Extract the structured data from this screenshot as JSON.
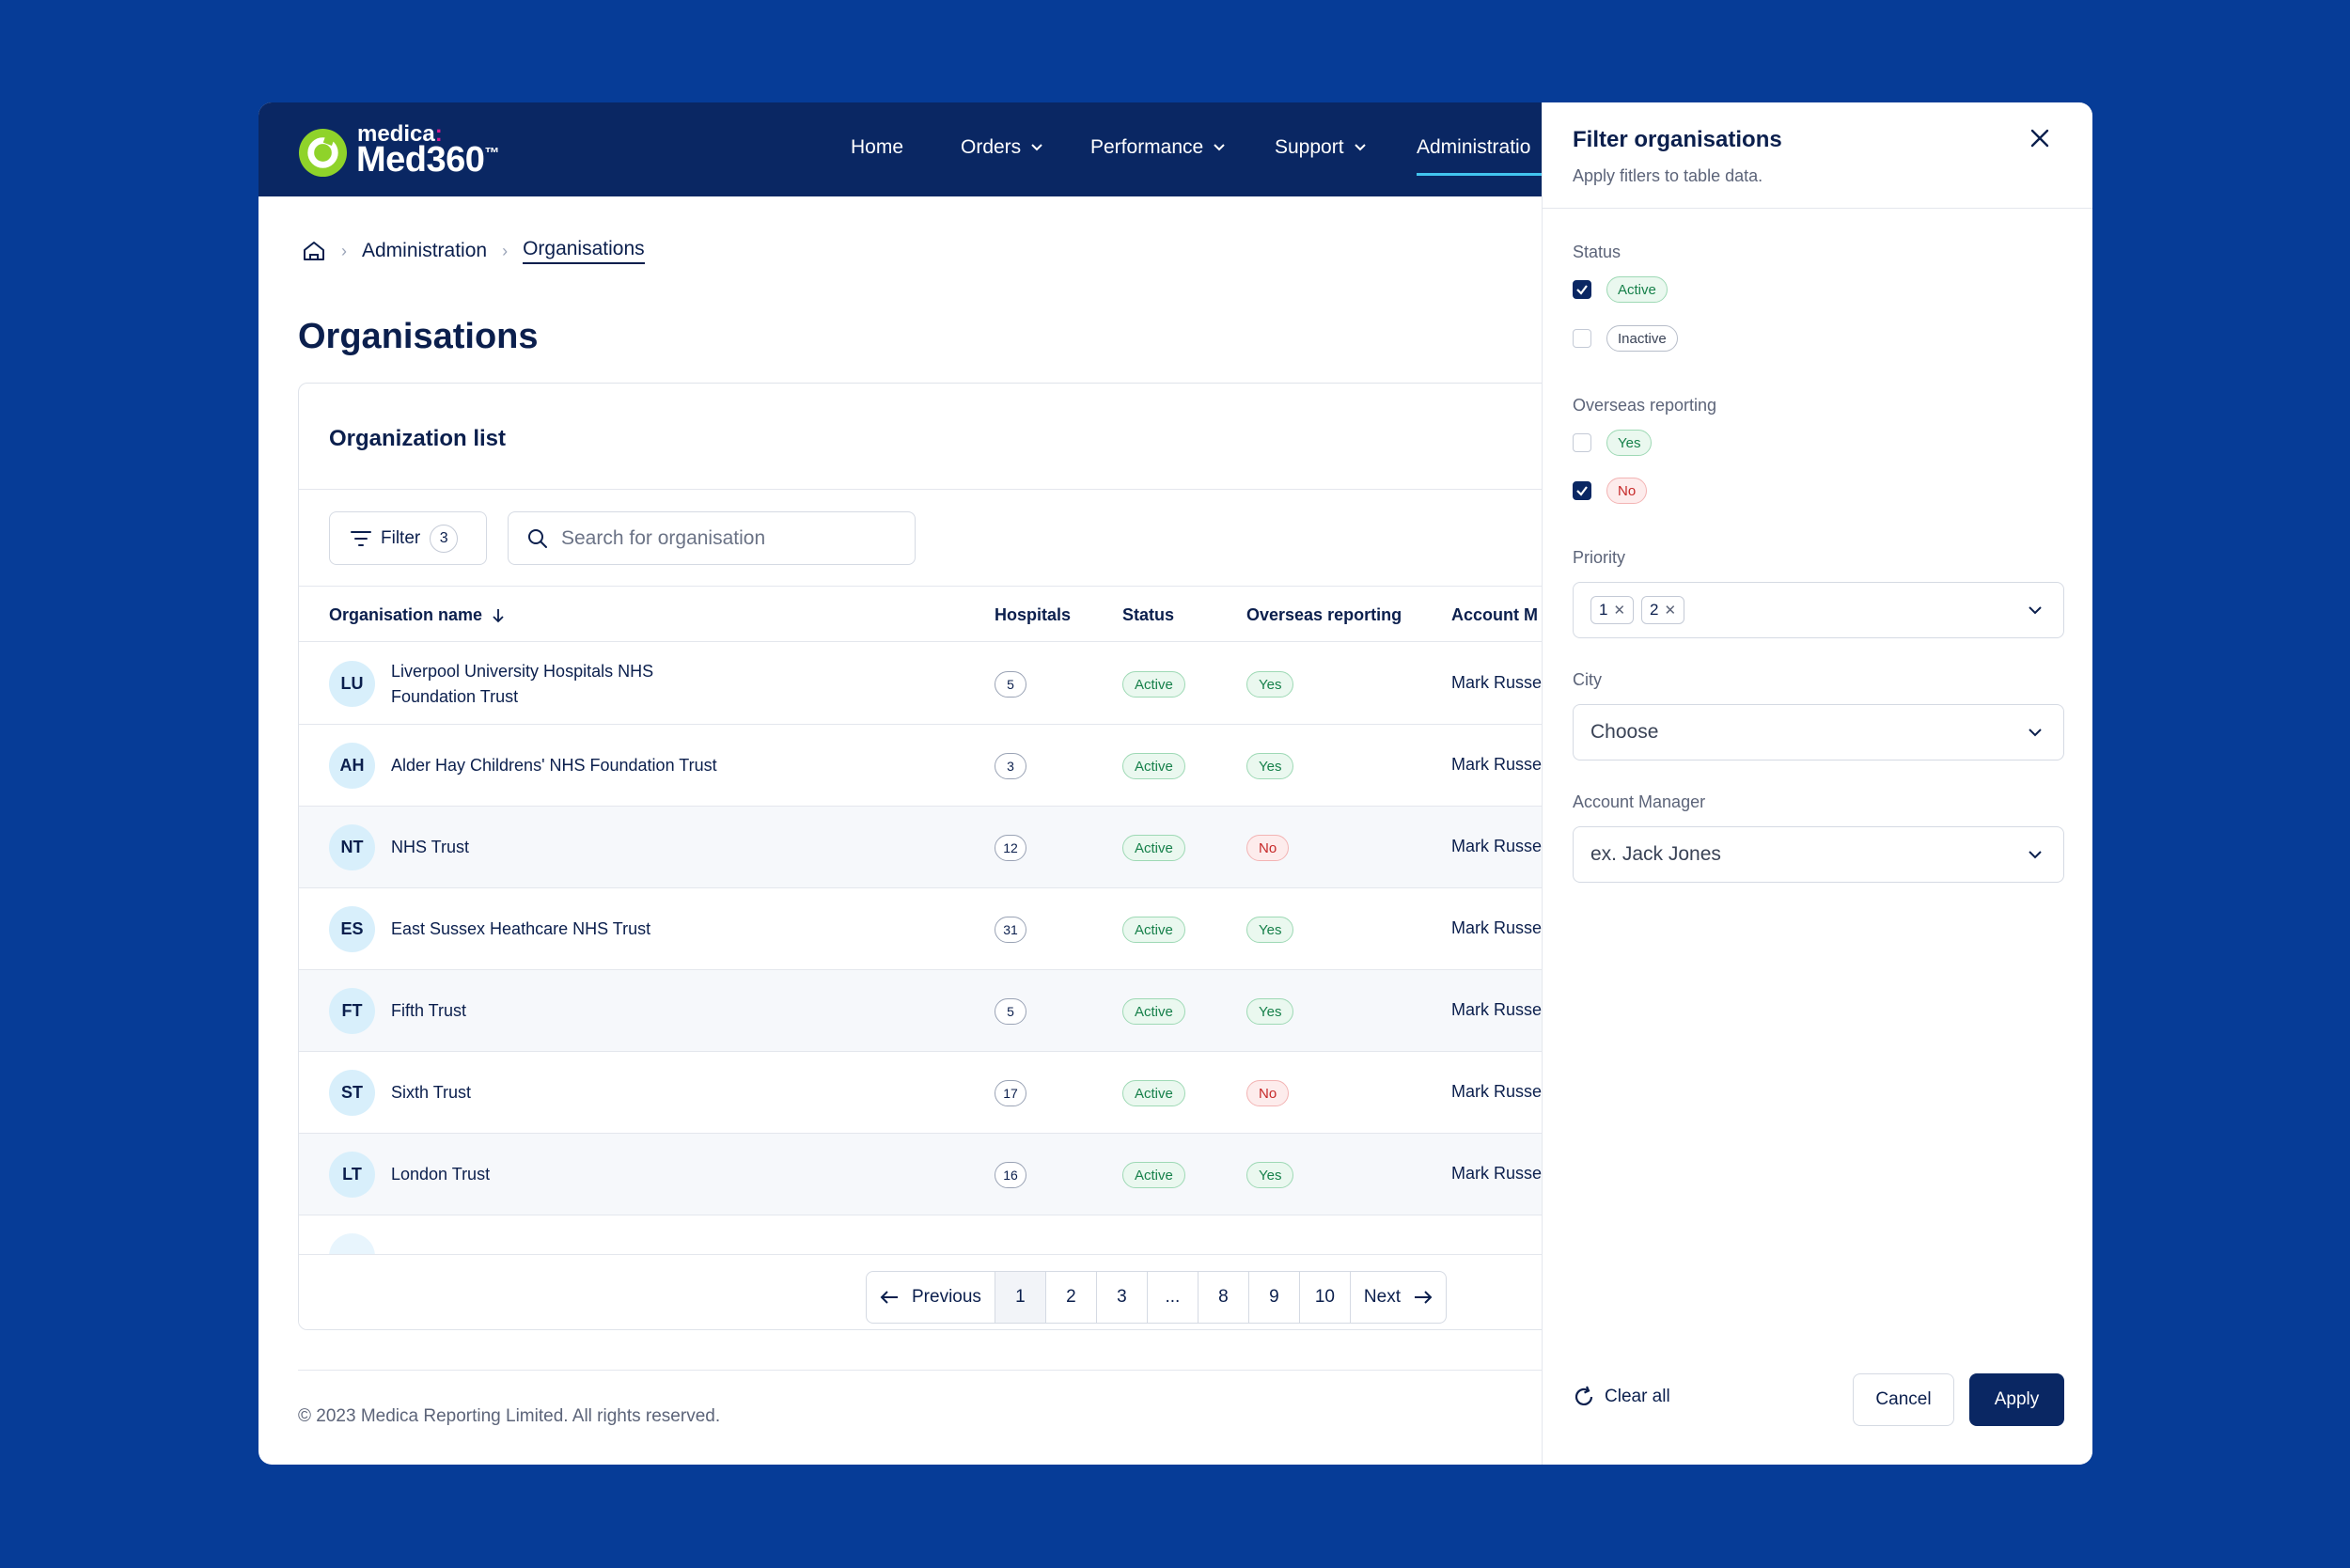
{
  "brand": {
    "top": "medica",
    "colon": ":",
    "name": "Med360",
    "tm": "™"
  },
  "nav": {
    "items": [
      {
        "label": "Home"
      },
      {
        "label": "Orders"
      },
      {
        "label": "Performance"
      },
      {
        "label": "Support"
      },
      {
        "label": "Administratio"
      }
    ]
  },
  "breadcrumb": {
    "items": [
      "Administration",
      "Organisations"
    ]
  },
  "page": {
    "title": "Organisations"
  },
  "card": {
    "title": "Organization list",
    "filter_label": "Filter",
    "filter_count": "3",
    "search_placeholder": "Search for organisation"
  },
  "table": {
    "columns": [
      "Organisation name",
      "Hospitals",
      "Status",
      "Overseas reporting",
      "Account M"
    ],
    "rows": [
      {
        "initials": "LU",
        "name": "Liverpool University Hospitals NHS Foundation Trust",
        "hospitals": "5",
        "status": "Active",
        "overseas": "Yes",
        "manager": "Mark Russe"
      },
      {
        "initials": "AH",
        "name": "Alder Hay Childrens' NHS Foundation Trust",
        "hospitals": "3",
        "status": "Active",
        "overseas": "Yes",
        "manager": "Mark Russe"
      },
      {
        "initials": "NT",
        "name": "NHS Trust",
        "hospitals": "12",
        "status": "Active",
        "overseas": "No",
        "manager": "Mark Russe"
      },
      {
        "initials": "ES",
        "name": "East Sussex Heathcare NHS Trust",
        "hospitals": "31",
        "status": "Active",
        "overseas": "Yes",
        "manager": "Mark Russe"
      },
      {
        "initials": "FT",
        "name": "Fifth Trust",
        "hospitals": "5",
        "status": "Active",
        "overseas": "Yes",
        "manager": "Mark Russe"
      },
      {
        "initials": "ST",
        "name": "Sixth Trust",
        "hospitals": "17",
        "status": "Active",
        "overseas": "No",
        "manager": "Mark Russe"
      },
      {
        "initials": "LT",
        "name": "London Trust",
        "hospitals": "16",
        "status": "Active",
        "overseas": "Yes",
        "manager": "Mark Russe"
      }
    ]
  },
  "pagination": {
    "previous": "Previous",
    "pages": [
      "1",
      "2",
      "3",
      "...",
      "8",
      "9",
      "10"
    ],
    "current": "1",
    "next": "Next"
  },
  "footer": {
    "text": "© 2023 Medica Reporting Limited. All rights reserved."
  },
  "filter_panel": {
    "title": "Filter organisations",
    "subtitle": "Apply fitlers to table data.",
    "status": {
      "label": "Status",
      "options": [
        {
          "label": "Active",
          "checked": true
        },
        {
          "label": "Inactive",
          "checked": false
        }
      ]
    },
    "overseas": {
      "label": "Overseas reporting",
      "options": [
        {
          "label": "Yes",
          "checked": false
        },
        {
          "label": "No",
          "checked": true
        }
      ]
    },
    "priority": {
      "label": "Priority",
      "chips": [
        "1",
        "2"
      ]
    },
    "city": {
      "label": "City",
      "value": "Choose"
    },
    "account_manager": {
      "label": "Account Manager",
      "placeholder": "ex. Jack Jones"
    },
    "clear_all": "Clear all",
    "cancel": "Cancel",
    "apply": "Apply"
  },
  "colors": {
    "background": "#063c97",
    "nav": "#0a2763",
    "accent_green": "#16804a",
    "accent_red": "#c62828",
    "logo_green": "#7ed321"
  }
}
